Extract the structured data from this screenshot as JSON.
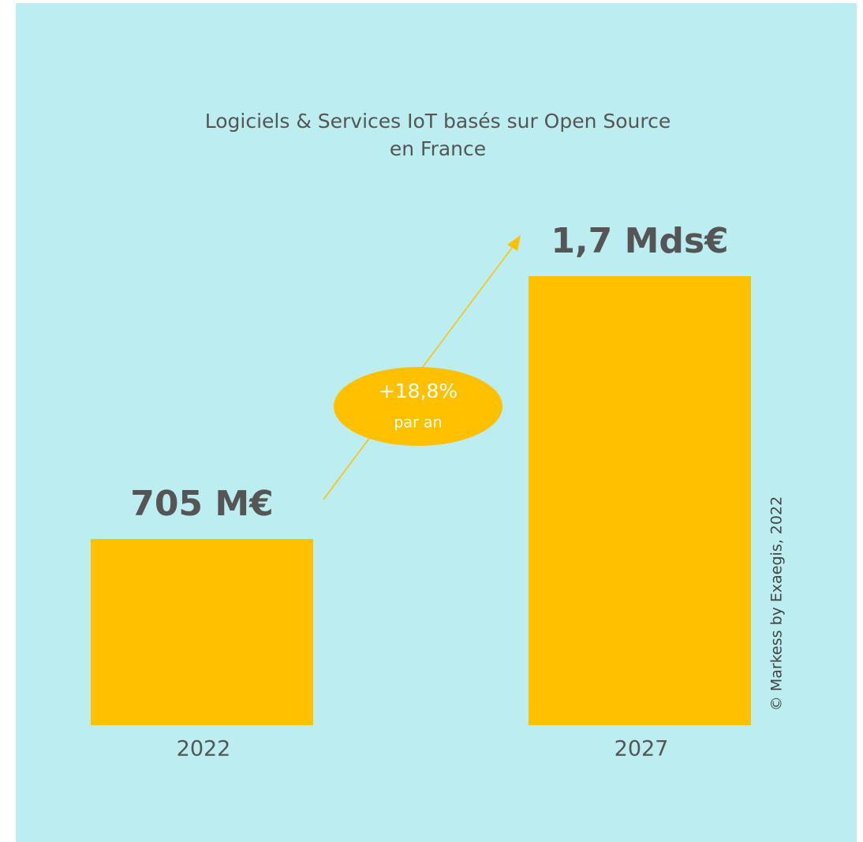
{
  "chart_data": {
    "type": "bar",
    "title": [
      "Logiciels & Services IoT basés sur Open Source",
      "en France"
    ],
    "categories": [
      "2022",
      "2027"
    ],
    "values": [
      705,
      1700
    ],
    "value_labels": [
      "705 M€",
      "1,7 Mds€"
    ],
    "color": "#ffc000",
    "annotation": [
      "+18,8%",
      "par an"
    ],
    "source": "© Markess by Exaegis, 2022"
  }
}
